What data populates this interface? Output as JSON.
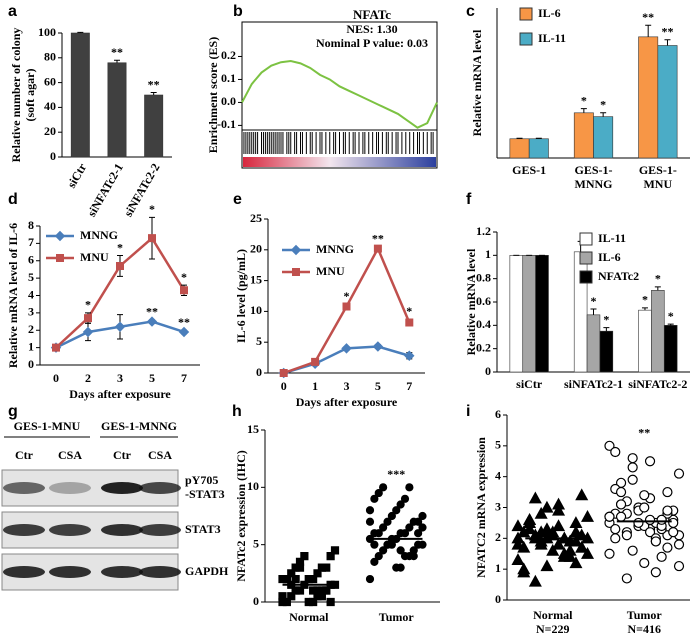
{
  "chart_data": [
    {
      "panel": "a",
      "type": "bar",
      "ylabel": [
        "Relative number of colony",
        "(soft agar)"
      ],
      "categories": [
        "siCtr",
        "siNFATc2-1",
        "siNFATc2-2"
      ],
      "values": [
        100,
        76,
        50
      ],
      "errors": [
        0.5,
        2,
        2
      ],
      "annotations": [
        null,
        "**",
        "**"
      ],
      "color": "#404040",
      "ylim": [
        0,
        100
      ],
      "yticks": [
        0,
        20,
        40,
        60,
        80,
        100
      ]
    },
    {
      "panel": "b",
      "type": "gsea",
      "title": "NFATc",
      "stats": [
        "NES: 1.30",
        "Nominal P value: 0.03"
      ],
      "ylabel": "Enrichment score (ES)",
      "ylim": [
        -0.12,
        0.35
      ],
      "yticks": [
        {
          "value": 0.2,
          "label": "0.2"
        },
        {
          "value": 0.1,
          "label": "0.1"
        },
        {
          "value": 0.0,
          "label": "0.0"
        },
        {
          "value": -0.1,
          "label": "-0.1"
        }
      ],
      "xlim": [
        0,
        100
      ],
      "x": [
        0,
        5,
        10,
        15,
        20,
        25,
        30,
        35,
        40,
        45,
        50,
        55,
        60,
        65,
        70,
        75,
        80,
        85,
        90,
        95,
        100
      ],
      "es": [
        0,
        0.08,
        0.13,
        0.16,
        0.175,
        0.18,
        0.17,
        0.15,
        0.12,
        0.1,
        0.07,
        0.05,
        0.03,
        0.01,
        -0.01,
        -0.03,
        -0.05,
        -0.08,
        -0.11,
        -0.09,
        0.0
      ],
      "hits": [
        1,
        2,
        3,
        4,
        5,
        6,
        7,
        8,
        10,
        11,
        12,
        13,
        14,
        15,
        16,
        17,
        18,
        19,
        20,
        21,
        23,
        24,
        25,
        27,
        28,
        30,
        31,
        33,
        35,
        36,
        38,
        40,
        41,
        43,
        45,
        47,
        48,
        50,
        52,
        53,
        55,
        57,
        58,
        60,
        62,
        63,
        65,
        67,
        69,
        70,
        72,
        74,
        75,
        77,
        79,
        80,
        82,
        84,
        86,
        88,
        90,
        91,
        93,
        95,
        97,
        98
      ],
      "color": "#7cc242"
    },
    {
      "panel": "c",
      "type": "bar",
      "ylabel": "Relative mRNA level",
      "categories": [
        "GES-1",
        [
          "GES-1-",
          "MNNG"
        ],
        [
          "GES-1-",
          "MNU"
        ]
      ],
      "ylim": [
        0,
        7.8
      ],
      "series": [
        {
          "name": "IL-6",
          "color": "#f79646",
          "values": [
            1,
            2.35,
            6.3
          ],
          "errors": [
            0.03,
            0.22,
            0.6
          ],
          "annotations": [
            null,
            "*",
            "**"
          ]
        },
        {
          "name": "IL-11",
          "color": "#4bacc6",
          "values": [
            1,
            2.15,
            5.85
          ],
          "errors": [
            0.03,
            0.2,
            0.3
          ],
          "annotations": [
            null,
            "*",
            "**"
          ]
        }
      ]
    },
    {
      "panel": "d",
      "type": "line",
      "ylabel": "Relative mRNA level of IL-6",
      "xlabel": "Days after exposure",
      "categories": [
        "0",
        "2",
        "3",
        "5",
        "7"
      ],
      "ylim": [
        0,
        8
      ],
      "yticks": [
        0,
        1,
        2,
        3,
        4,
        5,
        6,
        7,
        8
      ],
      "series": [
        {
          "name": "MNNG",
          "color": "#4a7ebb",
          "marker": "diamond",
          "values": [
            1,
            1.9,
            2.2,
            2.5,
            1.9
          ],
          "errors": [
            0.1,
            0.5,
            0.7,
            0.1,
            0.1
          ],
          "annotations": [
            null,
            null,
            null,
            "**",
            "**"
          ]
        },
        {
          "name": "MNU",
          "color": "#c0504d",
          "marker": "square",
          "values": [
            1,
            2.7,
            5.7,
            7.3,
            4.3
          ],
          "errors": [
            0.1,
            0.3,
            0.6,
            1.2,
            0.3
          ],
          "annotations": [
            null,
            "*",
            "*",
            "*",
            "*"
          ]
        }
      ]
    },
    {
      "panel": "e",
      "type": "line",
      "ylabel": "IL-6 level (pg/mL)",
      "xlabel": "Days after exposure",
      "categories": [
        "0",
        "1",
        "3",
        "5",
        "7"
      ],
      "ylim": [
        0,
        25
      ],
      "yticks": [
        0,
        5,
        10,
        15,
        20,
        25
      ],
      "series": [
        {
          "name": "MNNG",
          "color": "#4a7ebb",
          "marker": "diamond",
          "values": [
            0,
            1.5,
            4,
            4.3,
            2.8
          ],
          "errors": [
            0.1,
            0.3,
            0.3,
            0.3,
            0.5
          ]
        },
        {
          "name": "MNU",
          "color": "#c0504d",
          "marker": "square",
          "values": [
            0,
            1.8,
            10.8,
            20.2,
            8.2
          ],
          "errors": [
            0.1,
            0.3,
            0.4,
            0.3,
            0.5
          ],
          "annotations": [
            null,
            null,
            "*",
            "**",
            "*"
          ]
        }
      ]
    },
    {
      "panel": "f",
      "type": "bar",
      "ylabel": "Relative mRNA level",
      "categories": [
        "siCtr",
        "siNFATc2-1",
        "siNFATc2-2"
      ],
      "ylim": [
        0,
        1.2
      ],
      "yticks": [
        0,
        0.2,
        0.4,
        0.6,
        0.8,
        1,
        1.2
      ],
      "series": [
        {
          "name": "IL-11",
          "color": "#ffffff",
          "values": [
            1,
            1.03,
            0.53
          ],
          "errors": [
            0,
            0.09,
            0.02
          ],
          "annotations": [
            null,
            null,
            "*"
          ]
        },
        {
          "name": "IL-6",
          "color": "#a6a6a6",
          "values": [
            1,
            0.49,
            0.7
          ],
          "errors": [
            0,
            0.05,
            0.03
          ],
          "annotations": [
            null,
            "*",
            "*"
          ]
        },
        {
          "name": "NFATc2",
          "color": "#000000",
          "values": [
            1,
            0.35,
            0.4
          ],
          "errors": [
            0,
            0.03,
            0.01
          ],
          "annotations": [
            null,
            "*",
            "*"
          ]
        }
      ]
    },
    {
      "panel": "g",
      "type": "blot",
      "groups": [
        "GES-1-MNU",
        "GES-1-MNNG"
      ],
      "lanes": [
        "Ctr",
        "CSA",
        "Ctr",
        "CSA"
      ],
      "rows": [
        [
          "pY705",
          "-STAT3"
        ],
        "STAT3",
        "GAPDH"
      ]
    },
    {
      "panel": "h",
      "type": "dots",
      "ylabel": "NFATc2  expression (IHC)",
      "categories": [
        "Normal",
        "Tumor"
      ],
      "ylim": [
        0,
        15
      ],
      "yticks": [
        0,
        5,
        10,
        15
      ],
      "markers": [
        "square",
        "circle"
      ],
      "filled": [
        true,
        true
      ],
      "groups": [
        [
          0,
          0,
          0,
          0.5,
          0.5,
          1,
          1,
          1,
          1,
          1.5,
          1.5,
          1.5,
          2,
          2,
          2,
          2,
          2.5,
          2.5,
          3,
          3,
          3,
          3.5,
          4,
          4,
          4.5,
          0,
          0.5,
          1,
          2,
          1,
          1.5,
          0.5,
          2,
          1,
          3,
          0
        ],
        [
          2,
          3,
          3.5,
          4,
          4,
          4,
          4.5,
          4.5,
          5,
          5,
          5,
          5,
          5.5,
          5.5,
          6,
          6,
          6,
          6,
          6.5,
          6.5,
          7,
          7,
          7,
          7.5,
          7.5,
          8,
          8,
          8.5,
          9,
          9,
          9.5,
          10,
          10,
          4,
          5,
          6,
          5.5,
          6.5,
          3,
          7,
          4.5,
          5
        ]
      ],
      "means": [
        1.5,
        5.5
      ],
      "annotations": [
        null,
        "***"
      ]
    },
    {
      "panel": "i",
      "type": "dots",
      "ylabel": "NFATC2 mRNA expression",
      "categories": [
        [
          "Normal",
          "N=229"
        ],
        [
          "Tumor",
          "N=416"
        ]
      ],
      "ylim": [
        0,
        6
      ],
      "yticks": [
        0,
        1,
        2,
        3,
        4,
        5,
        6
      ],
      "markers": [
        "triangle",
        "circle"
      ],
      "filled": [
        true,
        false
      ],
      "groups": [
        [
          2.0,
          1.8,
          2.2,
          1.5,
          2.5,
          1.9,
          2.1,
          1.2,
          2.8,
          1.7,
          2.3,
          2.0,
          1.6,
          2.4,
          3.1,
          0.9,
          1.4,
          2.6,
          1.9,
          2.0,
          2.2,
          1.8,
          3.4,
          1.1,
          2.7,
          2.1,
          1.3,
          2.9,
          1.7,
          2.0,
          2.3,
          1.6,
          0.6,
          2.5,
          1.9,
          2.1,
          3.0,
          1.5,
          2.2,
          1.8,
          2.4,
          1.0,
          2.0,
          2.6,
          1.4,
          3.3,
          1.9,
          2.2,
          1.7,
          2.0
        ],
        [
          2.5,
          2.3,
          2.8,
          1.9,
          3.1,
          2.6,
          2.2,
          3.5,
          1.6,
          2.9,
          2.4,
          4.1,
          1.2,
          2.7,
          3.3,
          2.0,
          2.5,
          3.8,
          1.4,
          2.8,
          2.1,
          4.6,
          2.6,
          3.0,
          1.8,
          2.4,
          5.0,
          2.2,
          3.6,
          0.9,
          2.7,
          2.3,
          3.2,
          1.7,
          4.3,
          2.5,
          2.9,
          2.1,
          3.4,
          1.5,
          2.6,
          4.8,
          2.0,
          3.1,
          2.4,
          0.7,
          2.8,
          3.9,
          2.2,
          2.5,
          1.1,
          3.0,
          2.7,
          4.5,
          2.3,
          1.9,
          3.5,
          2.6,
          2.1,
          2.9
        ]
      ],
      "means": [
        2.0,
        2.55
      ],
      "annotations": [
        null,
        "**"
      ]
    }
  ]
}
